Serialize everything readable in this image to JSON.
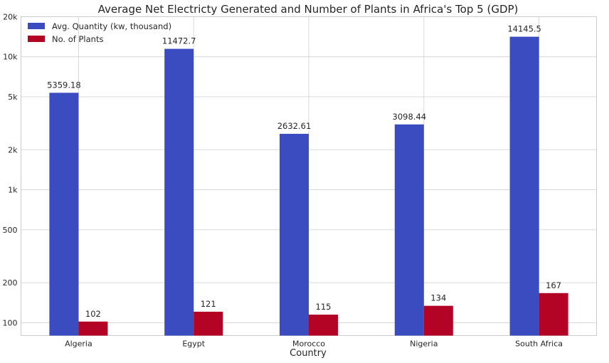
{
  "chart_data": {
    "type": "bar",
    "title": "Average Net Electricty Generated and Number of Plants in Africa's Top 5 (GDP)",
    "xlabel": "Country",
    "ylabel": "",
    "yscale": "log",
    "ylim": [
      80,
      20000
    ],
    "yticks": [
      100,
      200,
      500,
      1000,
      2000,
      5000,
      10000,
      20000
    ],
    "ytick_labels": [
      "100",
      "200",
      "500",
      "1k",
      "2k",
      "5k",
      "10k",
      "20k"
    ],
    "categories": [
      "Algeria",
      "Egypt",
      "Morocco",
      "Nigeria",
      "South Africa"
    ],
    "series": [
      {
        "name": "Avg. Quantity (kw, thousand)",
        "color": "#3b4cc0",
        "values": [
          5359.18,
          11472.7,
          2632.61,
          3098.44,
          14145.5
        ],
        "labels": [
          "5359.18",
          "11472.7",
          "2632.61",
          "3098.44",
          "14145.5"
        ]
      },
      {
        "name": "No. of Plants",
        "color": "#b40426",
        "values": [
          102,
          121,
          115,
          134,
          167
        ],
        "labels": [
          "102",
          "121",
          "115",
          "134",
          "167"
        ]
      }
    ],
    "legend_position": "top-left",
    "grid": true
  }
}
